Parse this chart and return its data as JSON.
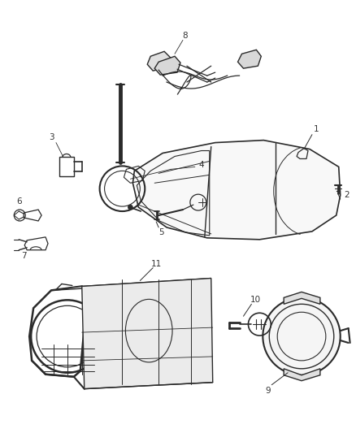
{
  "background_color": "#ffffff",
  "line_color": "#2a2a2a",
  "label_color": "#333333",
  "fig_width": 4.38,
  "fig_height": 5.33,
  "dpi": 100
}
